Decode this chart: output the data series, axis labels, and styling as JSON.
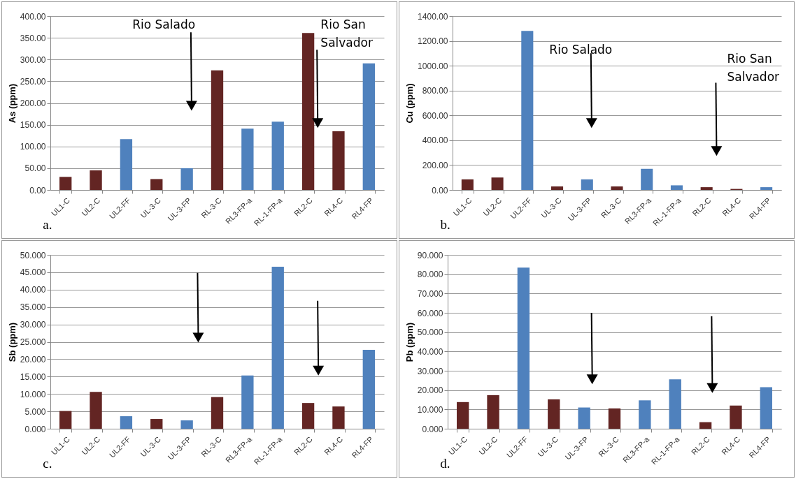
{
  "chart_data": [
    {
      "type": "bar",
      "title": "a.",
      "ylabel": "As (ppm)",
      "categories": [
        "UL1-C",
        "UL2-C",
        "UL2-FF",
        "UL-3-C",
        "UL-3-FP",
        "RL-3-C",
        "RL3-FP-a",
        "RL-1-FP-a",
        "RL2-C",
        "RL4-C",
        "RL4-FP"
      ],
      "values": [
        30,
        45,
        117,
        25,
        50,
        275,
        141,
        157,
        361,
        135,
        291
      ],
      "colors": [
        "#632523",
        "#632523",
        "#4f81bd",
        "#632523",
        "#4f81bd",
        "#632523",
        "#4f81bd",
        "#4f81bd",
        "#632523",
        "#632523",
        "#4f81bd"
      ],
      "ylim": [
        0,
        400
      ],
      "yticks": [
        {
          "value": 0,
          "label": "0.00"
        },
        {
          "value": 50,
          "label": "50.00"
        },
        {
          "value": 100,
          "label": "100.00"
        },
        {
          "value": 150,
          "label": "150.00"
        },
        {
          "value": 200,
          "label": "200.00"
        },
        {
          "value": 250,
          "label": "250.00"
        },
        {
          "value": 300,
          "label": "300.00"
        },
        {
          "value": 350,
          "label": "350.00"
        },
        {
          "value": 400,
          "label": "400.00"
        }
      ],
      "grid": "y",
      "annotations": [
        "Rio Salado",
        "Rio San\nSalvador"
      ]
    },
    {
      "type": "bar",
      "title": "b.",
      "ylabel": "Cu (ppm)",
      "categories": [
        "UL1-C",
        "UL2-C",
        "UL2-FF",
        "UL-3-C",
        "UL-3-FP",
        "RL-3-C",
        "RL3-FP-a",
        "RL-1-FP-a",
        "RL2-C",
        "RL4-C",
        "RL4-FP"
      ],
      "values": [
        85,
        100,
        1280,
        28,
        85,
        28,
        170,
        37,
        22,
        8,
        22
      ],
      "colors": [
        "#632523",
        "#632523",
        "#4f81bd",
        "#632523",
        "#4f81bd",
        "#632523",
        "#4f81bd",
        "#4f81bd",
        "#632523",
        "#632523",
        "#4f81bd"
      ],
      "ylim": [
        0,
        1400
      ],
      "yticks": [
        {
          "value": 0,
          "label": "0.00"
        },
        {
          "value": 200,
          "label": "200.00"
        },
        {
          "value": 400,
          "label": "400.00"
        },
        {
          "value": 600,
          "label": "600.00"
        },
        {
          "value": 800,
          "label": "800.00"
        },
        {
          "value": 1000,
          "label": "1000.00"
        },
        {
          "value": 1200,
          "label": "1200.00"
        },
        {
          "value": 1400,
          "label": "1400.00"
        }
      ],
      "grid": "y",
      "annotations": [
        "Rio Salado",
        "Rio San\nSalvador"
      ]
    },
    {
      "type": "bar",
      "title": "c.",
      "ylabel": "Sb (ppm)",
      "categories": [
        "UL1-C",
        "UL2-C",
        "UL2-FF",
        "UL-3-C",
        "UL-3-FP",
        "RL-3-C",
        "RL3-FP-a",
        "RL-1-FP-a",
        "RL2-C",
        "RL4-C",
        "RL4-FP"
      ],
      "values": [
        5.1,
        10.6,
        3.6,
        2.8,
        2.4,
        9.1,
        15.3,
        46.6,
        7.4,
        6.4,
        22.7
      ],
      "colors": [
        "#632523",
        "#632523",
        "#4f81bd",
        "#632523",
        "#4f81bd",
        "#632523",
        "#4f81bd",
        "#4f81bd",
        "#632523",
        "#632523",
        "#4f81bd"
      ],
      "ylim": [
        0,
        50
      ],
      "yticks": [
        {
          "value": 0,
          "label": "0.000"
        },
        {
          "value": 5,
          "label": "5.000"
        },
        {
          "value": 10,
          "label": "10.000"
        },
        {
          "value": 15,
          "label": "15.000"
        },
        {
          "value": 20,
          "label": "20.000"
        },
        {
          "value": 25,
          "label": "25.000"
        },
        {
          "value": 30,
          "label": "30.000"
        },
        {
          "value": 35,
          "label": "35.000"
        },
        {
          "value": 40,
          "label": "40.000"
        },
        {
          "value": 45,
          "label": "45.000"
        },
        {
          "value": 50,
          "label": "50.000"
        }
      ],
      "grid": "y"
    },
    {
      "type": "bar",
      "title": "d.",
      "ylabel": "Pb (ppm)",
      "categories": [
        "UL1-C",
        "UL2-C",
        "UL2-FF",
        "UL-3-C",
        "UL-3-FP",
        "RL-3-C",
        "RL3-FP-a",
        "RL-1-FP-a",
        "RL2-C",
        "RL4-C",
        "RL4-FP"
      ],
      "values": [
        13.8,
        17.4,
        83.4,
        15.2,
        11.0,
        10.5,
        14.7,
        25.6,
        3.4,
        12.0,
        21.5
      ],
      "colors": [
        "#632523",
        "#632523",
        "#4f81bd",
        "#632523",
        "#4f81bd",
        "#632523",
        "#4f81bd",
        "#4f81bd",
        "#632523",
        "#632523",
        "#4f81bd"
      ],
      "ylim": [
        0,
        90
      ],
      "yticks": [
        {
          "value": 0,
          "label": "0.000"
        },
        {
          "value": 10,
          "label": "10.000"
        },
        {
          "value": 20,
          "label": "20.000"
        },
        {
          "value": 30,
          "label": "30.000"
        },
        {
          "value": 40,
          "label": "40.000"
        },
        {
          "value": 50,
          "label": "50.000"
        },
        {
          "value": 60,
          "label": "60.000"
        },
        {
          "value": 70,
          "label": "70.000"
        },
        {
          "value": 80,
          "label": "80.000"
        },
        {
          "value": 90,
          "label": "90.000"
        }
      ],
      "grid": "y"
    }
  ]
}
